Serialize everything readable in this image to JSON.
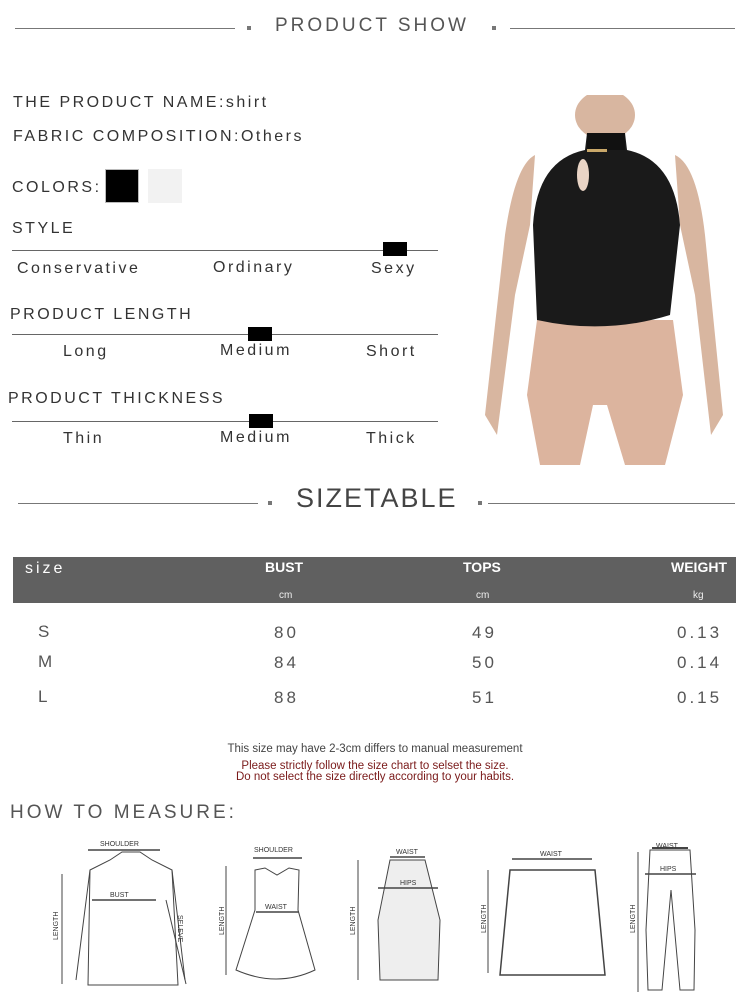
{
  "product_show": {
    "title": "PRODUCT SHOW",
    "name_label": "THE PRODUCT NAME:",
    "name_value": "shirt",
    "fabric_label": "FABRIC COMPOSITION:",
    "fabric_value": "Others",
    "colors_label": "COLORS:",
    "colors": [
      "#000000",
      "#f2f2f2"
    ],
    "style": {
      "label": "STYLE",
      "options": [
        "Conservative",
        "Ordinary",
        "Sexy"
      ],
      "selected": "Sexy"
    },
    "length": {
      "label": "PRODUCT LENGTH",
      "options": [
        "Long",
        "Medium",
        "Short"
      ],
      "selected": "Medium"
    },
    "thickness": {
      "label": "PRODUCT THICKNESS",
      "options": [
        "Thin",
        "Medium",
        "Thick"
      ],
      "selected": "Medium"
    }
  },
  "sizetable": {
    "title": "SIZETABLE",
    "headers": [
      "size",
      "BUST",
      "TOPS",
      "WEIGHT"
    ],
    "units": [
      "",
      "cm",
      "cm",
      "kg"
    ],
    "rows": [
      [
        "S",
        "80",
        "49",
        "0.13"
      ],
      [
        "M",
        "84",
        "50",
        "0.14"
      ],
      [
        "L",
        "88",
        "51",
        "0.15"
      ]
    ],
    "note": "This size may have 2-3cm differs to manual measurement",
    "warning1": "Please strictly follow the size chart to selset the size.",
    "warning2": "Do not select the size directly according to your habits.",
    "warning_color": "#7a1a1a"
  },
  "measure": {
    "title": "HOW TO MEASURE:",
    "shirt": {
      "shoulder": "SHOULDER",
      "bust": "BUST",
      "length": "LENGTH",
      "sleeve": "SELEVE"
    },
    "dress": {
      "shoulder": "SHOULDER",
      "waist": "WAIST",
      "length": "LENGTH"
    },
    "skirt": {
      "waist": "WAIST",
      "hips": "HIPS",
      "length": "LENGTH"
    },
    "mini": {
      "waist": "WAIST",
      "length": "LENGTH"
    },
    "pants": {
      "waist": "WAIST",
      "hips": "HIPS",
      "length": "LENGTH"
    }
  }
}
